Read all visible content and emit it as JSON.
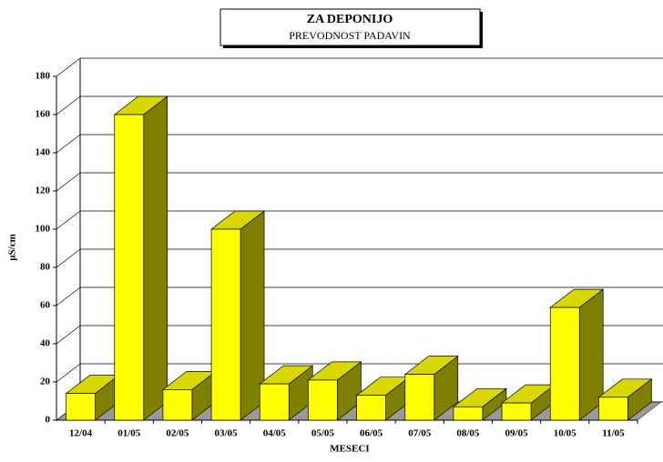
{
  "chart_data": {
    "type": "bar3d",
    "title": "ZA DEPONIJO",
    "subtitle": "PREVODNOST PADAVIN",
    "x_label": "MESECI",
    "y_label": "µS/cm",
    "categories": [
      "12/04",
      "01/05",
      "02/05",
      "03/05",
      "04/05",
      "05/05",
      "06/05",
      "07/05",
      "08/05",
      "09/05",
      "10/05",
      "11/05"
    ],
    "values": [
      14,
      160,
      16,
      100,
      19,
      21,
      13,
      24,
      7,
      9,
      59,
      12
    ],
    "color": "#ffff00",
    "ylim": [
      0,
      180
    ],
    "yticks": [
      0,
      20,
      40,
      60,
      80,
      100,
      120,
      140,
      160,
      180
    ],
    "grid": true
  }
}
